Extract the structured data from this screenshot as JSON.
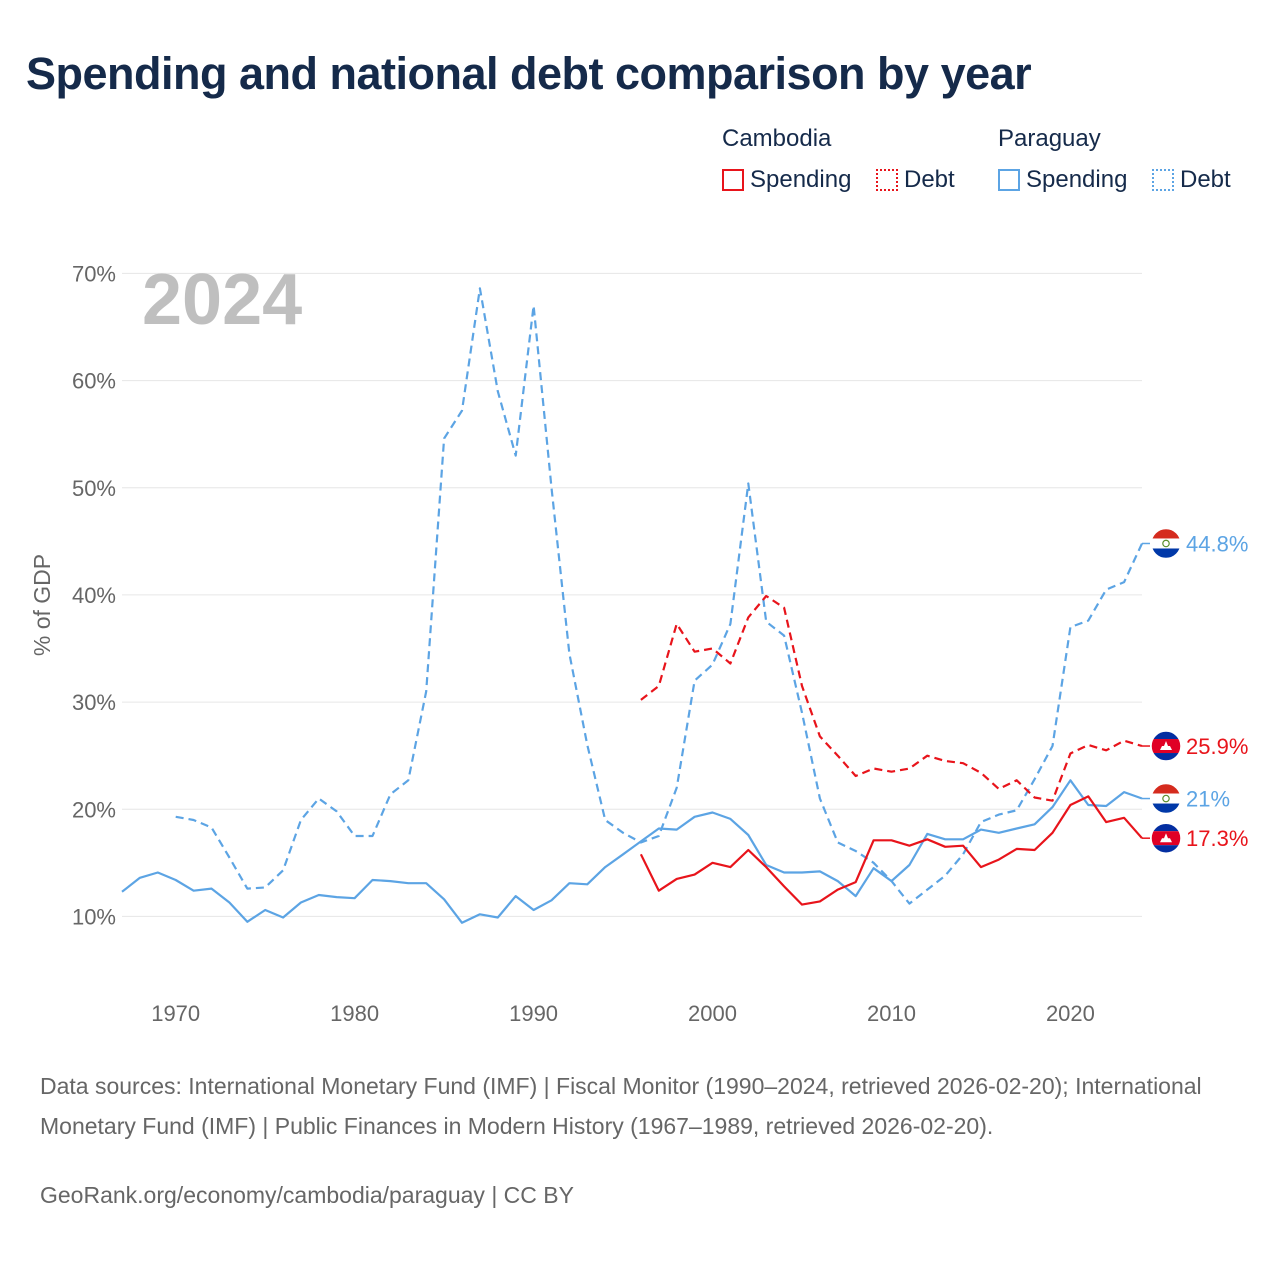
{
  "title": "Spending and national debt comparison by year",
  "legend": {
    "groups": [
      {
        "name": "Cambodia",
        "color": "#e8141b",
        "items": [
          {
            "label": "Spending",
            "style": "solid"
          },
          {
            "label": "Debt",
            "style": "dotted"
          }
        ]
      },
      {
        "name": "Paraguay",
        "color": "#5ca4e4",
        "items": [
          {
            "label": "Spending",
            "style": "solid"
          },
          {
            "label": "Debt",
            "style": "dotted"
          }
        ]
      }
    ]
  },
  "colors": {
    "cambodia": "#e8141b",
    "paraguay": "#5ca4e4",
    "grid": "#e6e6e6",
    "tick": "#666666",
    "year_watermark": "#bfbfbf"
  },
  "chart_data": {
    "type": "line",
    "year_label": "2024",
    "ylabel": "% of GDP",
    "xlim": [
      1967,
      2024
    ],
    "ylim": [
      5,
      72
    ],
    "xticks": [
      1970,
      1980,
      1990,
      2000,
      2010,
      2020
    ],
    "xtick_labels": [
      "1970",
      "1980",
      "1990",
      "2000",
      "2010",
      "2020"
    ],
    "yticks": [
      10,
      20,
      30,
      40,
      50,
      60,
      70
    ],
    "ytick_labels": [
      "10%",
      "20%",
      "30%",
      "40%",
      "50%",
      "60%",
      "70%"
    ],
    "series": [
      {
        "name": "Paraguay Debt",
        "country": "Paraguay",
        "kind": "Debt",
        "dashed": true,
        "color": "#5ca4e4",
        "end_label": "44.8%",
        "x": [
          1970,
          1971,
          1972,
          1973,
          1974,
          1975,
          1976,
          1977,
          1978,
          1979,
          1980,
          1981,
          1982,
          1983,
          1984,
          1985,
          1986,
          1987,
          1988,
          1989,
          1990,
          1991,
          1992,
          1993,
          1994,
          1995,
          1996,
          1997,
          1998,
          1999,
          2000,
          2001,
          2002,
          2003,
          2004,
          2005,
          2006,
          2007,
          2008,
          2009,
          2010,
          2011,
          2012,
          2013,
          2014,
          2015,
          2016,
          2017,
          2018,
          2019,
          2020,
          2021,
          2022,
          2023,
          2024
        ],
        "y": [
          19.3,
          19.0,
          18.3,
          15.5,
          12.6,
          12.7,
          14.3,
          19.0,
          21.0,
          19.8,
          17.5,
          17.5,
          21.4,
          22.7,
          31.0,
          54.6,
          57.2,
          68.6,
          59.0,
          53.0,
          67.0,
          50.0,
          34.5,
          26.0,
          19.0,
          17.8,
          16.9,
          17.5,
          22.0,
          32.0,
          33.5,
          37.3,
          50.4,
          37.5,
          36.2,
          29.0,
          21.0,
          16.9,
          16.1,
          15.0,
          13.3,
          11.2,
          12.5,
          13.8,
          15.8,
          18.8,
          19.5,
          19.9,
          22.8,
          25.9,
          37.0,
          37.6,
          40.5,
          41.2,
          44.8
        ]
      },
      {
        "name": "Paraguay Spending",
        "country": "Paraguay",
        "kind": "Spending",
        "dashed": false,
        "color": "#5ca4e4",
        "end_label": "21%",
        "x": [
          1967,
          1968,
          1969,
          1970,
          1971,
          1972,
          1973,
          1974,
          1975,
          1976,
          1977,
          1978,
          1979,
          1980,
          1981,
          1982,
          1983,
          1984,
          1985,
          1986,
          1987,
          1988,
          1989,
          1990,
          1991,
          1992,
          1993,
          1994,
          1995,
          1996,
          1997,
          1998,
          1999,
          2000,
          2001,
          2002,
          2003,
          2004,
          2005,
          2006,
          2007,
          2008,
          2009,
          2010,
          2011,
          2012,
          2013,
          2014,
          2015,
          2016,
          2017,
          2018,
          2019,
          2020,
          2021,
          2022,
          2023,
          2024
        ],
        "y": [
          12.3,
          13.6,
          14.1,
          13.4,
          12.4,
          12.6,
          11.3,
          9.5,
          10.6,
          9.9,
          11.3,
          12.0,
          11.8,
          11.7,
          13.4,
          13.3,
          13.1,
          13.1,
          11.6,
          9.4,
          10.2,
          9.9,
          11.9,
          10.6,
          11.5,
          13.1,
          13.0,
          14.6,
          15.8,
          17.0,
          18.2,
          18.1,
          19.3,
          19.7,
          19.1,
          17.6,
          14.8,
          14.1,
          14.1,
          14.2,
          13.3,
          11.9,
          14.5,
          13.3,
          14.8,
          17.7,
          17.2,
          17.2,
          18.1,
          17.8,
          18.2,
          18.6,
          20.2,
          22.7,
          20.4,
          20.3,
          21.6,
          21.0
        ]
      },
      {
        "name": "Cambodia Debt",
        "country": "Cambodia",
        "kind": "Debt",
        "dashed": true,
        "color": "#e8141b",
        "end_label": "25.9%",
        "x": [
          1996,
          1997,
          1998,
          1999,
          2000,
          2001,
          2002,
          2003,
          2004,
          2005,
          2006,
          2007,
          2008,
          2009,
          2010,
          2011,
          2012,
          2013,
          2014,
          2015,
          2016,
          2017,
          2018,
          2019,
          2020,
          2021,
          2022,
          2023,
          2024
        ],
        "y": [
          30.2,
          31.5,
          37.3,
          34.7,
          35.0,
          33.6,
          37.9,
          39.9,
          38.8,
          31.5,
          26.8,
          25.0,
          23.1,
          23.8,
          23.5,
          23.8,
          25.0,
          24.5,
          24.3,
          23.4,
          21.9,
          22.7,
          21.1,
          20.8,
          25.2,
          26.0,
          25.5,
          26.4,
          25.9
        ]
      },
      {
        "name": "Cambodia Spending",
        "country": "Cambodia",
        "kind": "Spending",
        "dashed": false,
        "color": "#e8141b",
        "end_label": "17.3%",
        "x": [
          1996,
          1997,
          1998,
          1999,
          2000,
          2001,
          2002,
          2003,
          2004,
          2005,
          2006,
          2007,
          2008,
          2009,
          2010,
          2011,
          2012,
          2013,
          2014,
          2015,
          2016,
          2017,
          2018,
          2019,
          2020,
          2021,
          2022,
          2023,
          2024
        ],
        "y": [
          15.8,
          12.4,
          13.5,
          13.9,
          15.0,
          14.6,
          16.2,
          14.6,
          12.8,
          11.1,
          11.4,
          12.5,
          13.2,
          17.1,
          17.1,
          16.6,
          17.2,
          16.5,
          16.6,
          14.6,
          15.3,
          16.3,
          16.2,
          17.8,
          20.4,
          21.2,
          18.8,
          19.2,
          17.3
        ]
      }
    ]
  },
  "sources": "Data sources: International Monetary Fund (IMF) | Fiscal Monitor (1990–2024, retrieved 2026-02-20); International Monetary Fund (IMF) | Public Finances in Modern History (1967–1989, retrieved 2026-02-20).",
  "credit": "GeoRank.org/economy/cambodia/paraguay | CC BY"
}
